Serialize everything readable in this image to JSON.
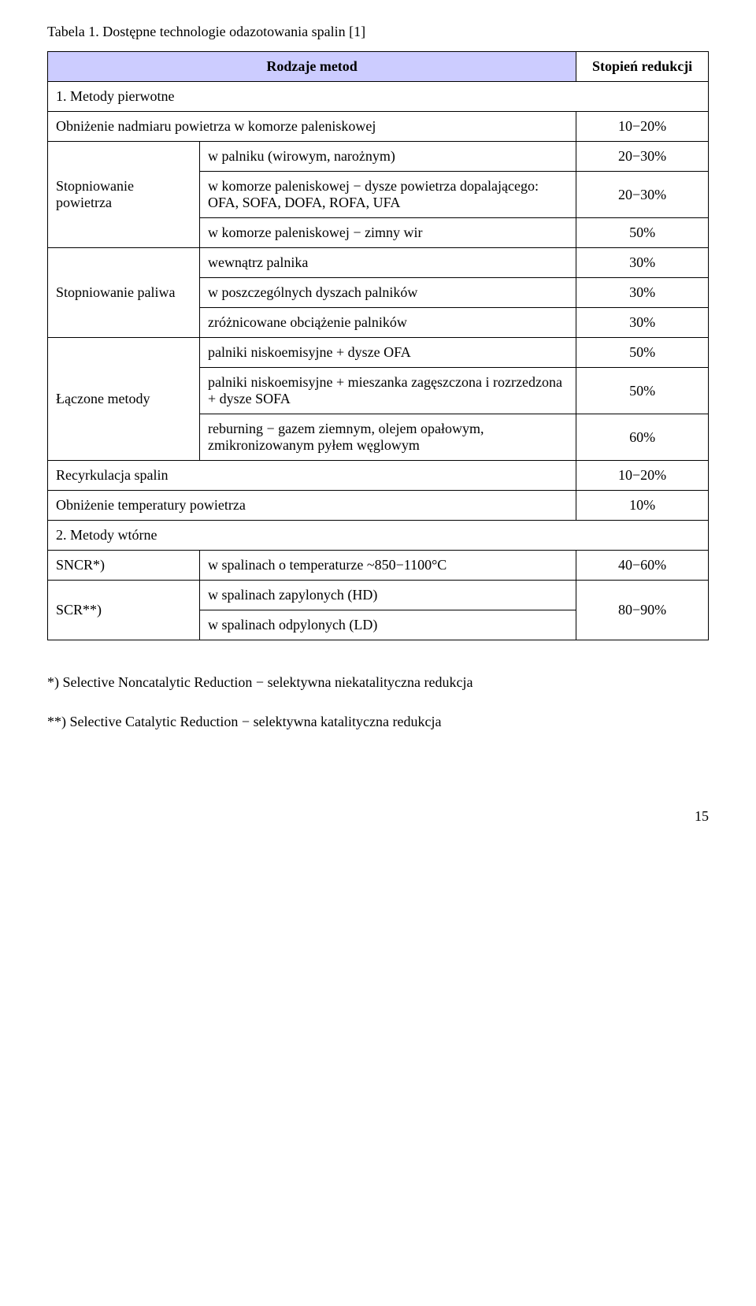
{
  "caption": "Tabela 1. Dostępne technologie odazotowania spalin [1]",
  "header": {
    "methods": "Rodzaje metod",
    "reduction": "Stopień redukcji"
  },
  "section1_title": "1. Metody pierwotne",
  "row_obn_komora": {
    "label": "Obniżenie nadmiaru powietrza w komorze paleniskowej",
    "val": "10−20%"
  },
  "stop_pow_label": "Stopniowanie powietrza",
  "sp1": {
    "label": "w palniku (wirowym, narożnym)",
    "val": "20−30%"
  },
  "sp2": {
    "label": "w komorze paleniskowej − dysze powietrza dopalającego: OFA, SOFA, DOFA, ROFA, UFA",
    "val": "20−30%"
  },
  "sp3": {
    "label": "w komorze paleniskowej − zimny wir",
    "val": "50%"
  },
  "stop_pal_label": "Stopniowanie paliwa",
  "pal1": {
    "label": "wewnątrz palnika",
    "val": "30%"
  },
  "pal2": {
    "label": "w poszczególnych dyszach palników",
    "val": "30%"
  },
  "pal3": {
    "label": "zróżnicowane obciążenie palników",
    "val": "30%"
  },
  "laczone_label": "Łączone metody",
  "lm1": {
    "label": "palniki niskoemisyjne + dysze OFA",
    "val": "50%"
  },
  "lm2": {
    "label": "palniki niskoemisyjne + mieszanka zagęszczona i rozrzedzona + dysze SOFA",
    "val": "50%"
  },
  "lm3": {
    "label": "reburning − gazem ziemnym, olejem opałowym, zmikronizowanym pyłem węglowym",
    "val": "60%"
  },
  "recyr": {
    "label": "Recyrkulacja spalin",
    "val": "10−20%"
  },
  "obn_temp": {
    "label": "Obniżenie temperatury powietrza",
    "val": "10%"
  },
  "section2_title": "2. Metody wtórne",
  "sncr_label": "SNCR*)",
  "sncr": {
    "label": "w spalinach o temperaturze ~850−1100°C",
    "val": "40−60%"
  },
  "scr_label": "SCR**)",
  "scr1": {
    "label": "w spalinach zapylonych (HD)"
  },
  "scr2": {
    "label": "w spalinach odpylonych (LD)"
  },
  "scr_val": "80−90%",
  "footnote1": "*) Selective Noncatalytic Reduction − selektywna niekatalityczna redukcja",
  "footnote2": "**) Selective Catalytic Reduction − selektywna katalityczna redukcja",
  "page": "15"
}
